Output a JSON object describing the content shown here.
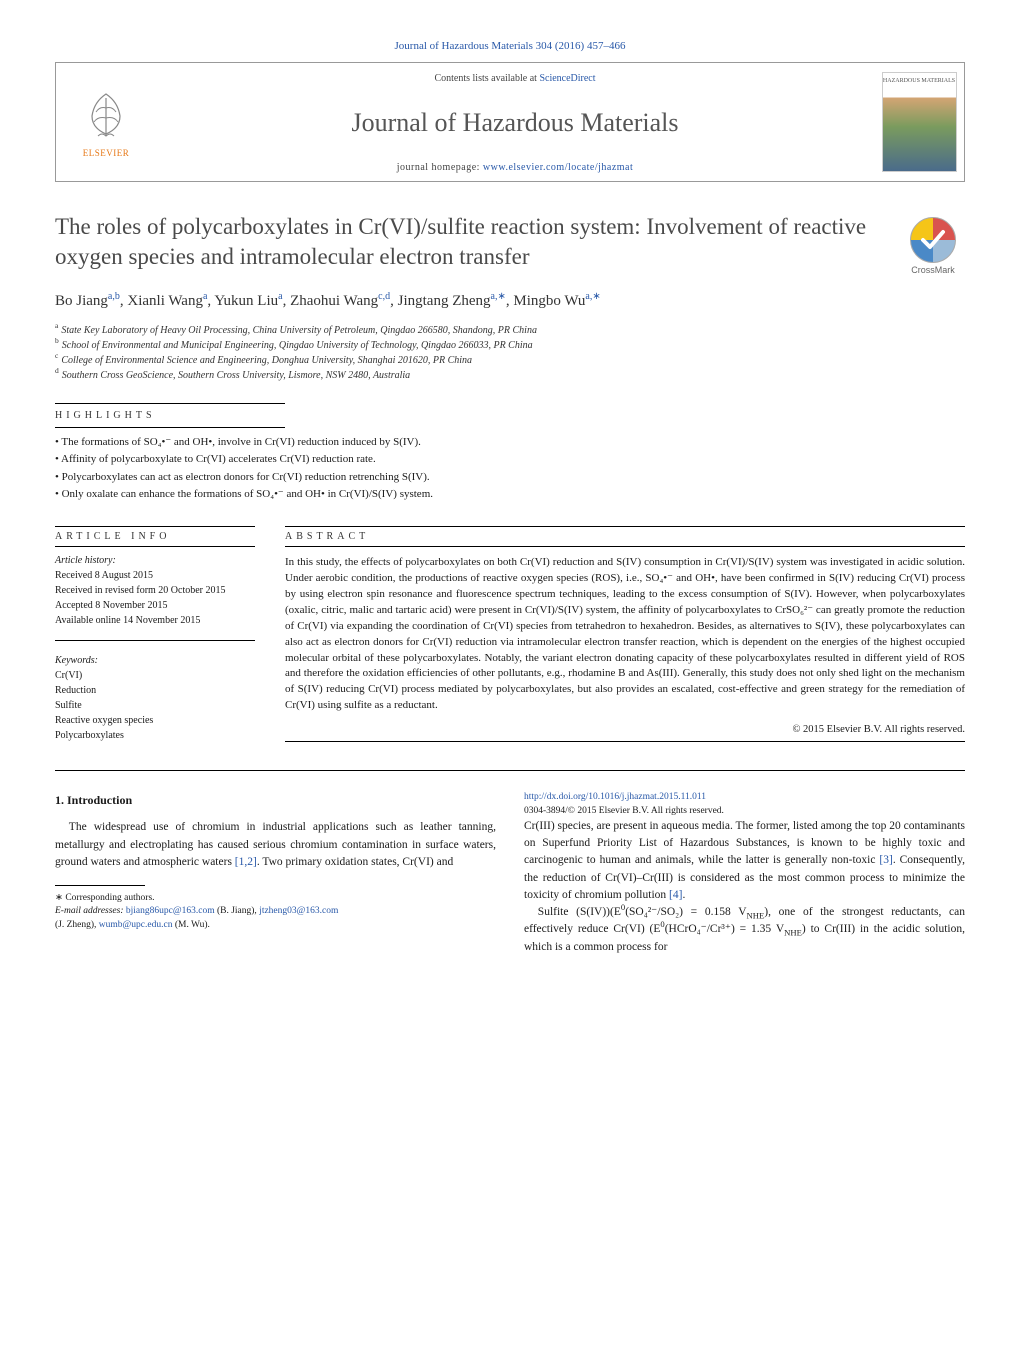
{
  "journal_ref": "Journal of Hazardous Materials 304 (2016) 457–466",
  "header": {
    "contents_prefix": "Contents lists available at ",
    "contents_link": "ScienceDirect",
    "journal_name": "Journal of Hazardous Materials",
    "homepage_prefix": "journal homepage: ",
    "homepage_link": "www.elsevier.com/locate/jhazmat",
    "elsevier": "ELSEVIER",
    "cover_text": "HAZARDOUS MATERIALS"
  },
  "title": "The roles of polycarboxylates in Cr(VI)/sulfite reaction system: Involvement of reactive oxygen species and intramolecular electron transfer",
  "crossmark_label": "CrossMark",
  "authors_html": "Bo Jiang<sup>a,b</sup>, Xianli Wang<sup>a</sup>, Yukun Liu<sup>a</sup>, Zhaohui Wang<sup>c,d</sup>, Jingtang Zheng<sup>a,∗</sup>, Mingbo Wu<sup>a,∗</sup>",
  "affiliations": [
    "a State Key Laboratory of Heavy Oil Processing, China University of Petroleum, Qingdao 266580, Shandong, PR China",
    "b School of Environmental and Municipal Engineering, Qingdao University of Technology, Qingdao 266033, PR China",
    "c College of Environmental Science and Engineering, Donghua University, Shanghai 201620, PR China",
    "d Southern Cross GeoScience, Southern Cross University, Lismore, NSW 2480, Australia"
  ],
  "highlights_label": "HIGHLIGHTS",
  "highlights": [
    "The formations of SO₄•⁻ and OH•, involve in Cr(VI) reduction induced by S(IV).",
    "Affinity of polycarboxylate to Cr(VI) accelerates Cr(VI) reduction rate.",
    "Polycarboxylates can act as electron donors for Cr(VI) reduction retrenching S(IV).",
    "Only oxalate can enhance the formations of SO₄•⁻ and OH• in Cr(VI)/S(IV) system."
  ],
  "article_info_label": "ARTICLE INFO",
  "history": {
    "hdr": "Article history:",
    "received": "Received 8 August 2015",
    "revised": "Received in revised form 20 October 2015",
    "accepted": "Accepted 8 November 2015",
    "online": "Available online 14 November 2015"
  },
  "keywords_hdr": "Keywords:",
  "keywords": [
    "Cr(VI)",
    "Reduction",
    "Sulfite",
    "Reactive oxygen species",
    "Polycarboxylates"
  ],
  "abstract_label": "ABSTRACT",
  "abstract": "In this study, the effects of polycarboxylates on both Cr(VI) reduction and S(IV) consumption in Cr(VI)/S(IV) system was investigated in acidic solution. Under aerobic condition, the productions of reactive oxygen species (ROS), i.e., SO₄•⁻ and OH•, have been confirmed in S(IV) reducing Cr(VI) process by using electron spin resonance and fluorescence spectrum techniques, leading to the excess consumption of S(IV). However, when polycarboxylates (oxalic, citric, malic and tartaric acid) were present in Cr(VI)/S(IV) system, the affinity of polycarboxylates to CrSO₆²⁻ can greatly promote the reduction of Cr(VI) via expanding the coordination of Cr(VI) species from tetrahedron to hexahedron. Besides, as alternatives to S(IV), these polycarboxylates can also act as electron donors for Cr(VI) reduction via intramolecular electron transfer reaction, which is dependent on the energies of the highest occupied molecular orbital of these polycarboxylates. Notably, the variant electron donating capacity of these polycarboxylates resulted in different yield of ROS and therefore the oxidation efficiencies of other pollutants, e.g., rhodamine B and As(III). Generally, this study does not only shed light on the mechanism of S(IV) reducing Cr(VI) process mediated by polycarboxylates, but also provides an escalated, cost-effective and green strategy for the remediation of Cr(VI) using sulfite as a reductant.",
  "copyright": "© 2015 Elsevier B.V. All rights reserved.",
  "intro_heading": "1. Introduction",
  "intro_p1_html": "The widespread use of chromium in industrial applications such as leather tanning, metallurgy and electroplating has caused serious chromium contamination in surface waters, ground waters and atmospheric waters <span class=\"ref-link\">[1,2]</span>. Two primary oxidation states, Cr(VI) and",
  "intro_p2_html": "Cr(III) species, are present in aqueous media. The former, listed among the top 20 contaminants on Superfund Priority List of Hazardous Substances, is known to be highly toxic and carcinogenic to human and animals, while the latter is generally non-toxic <span class=\"ref-link\">[3]</span>. Consequently, the reduction of Cr(VI)–Cr(III) is considered as the most common process to minimize the toxicity of chromium pollution <span class=\"ref-link\">[4]</span>.",
  "intro_p3_html": "Sulfite (S(IV))(E<sup>0</sup>(SO₄²⁻/SO₂) = 0.158 V<sub>NHE</sub>), one of the strongest reductants, can effectively reduce Cr(VI) (E<sup>0</sup>(HCrO₄⁻/Cr³⁺) = 1.35 V<sub>NHE</sub>) to Cr(III) in the acidic solution, which is a common process for",
  "corr": {
    "label": "∗ Corresponding authors.",
    "emails_label": "E-mail addresses:",
    "e1": "bjiang86upc@163.com",
    "n1": "(B. Jiang),",
    "e2": "jtzheng03@163.com",
    "n2": "(J. Zheng),",
    "e3": "wumb@upc.edu.cn",
    "n3": "(M. Wu)."
  },
  "doi": {
    "url": "http://dx.doi.org/10.1016/j.jhazmat.2015.11.011",
    "issn": "0304-3894/© 2015 Elsevier B.V. All rights reserved."
  },
  "colors": {
    "link": "#2858a8",
    "elsevier_orange": "#e67817",
    "text": "#1a1a1a",
    "heading_gray": "#4a4a4a"
  }
}
